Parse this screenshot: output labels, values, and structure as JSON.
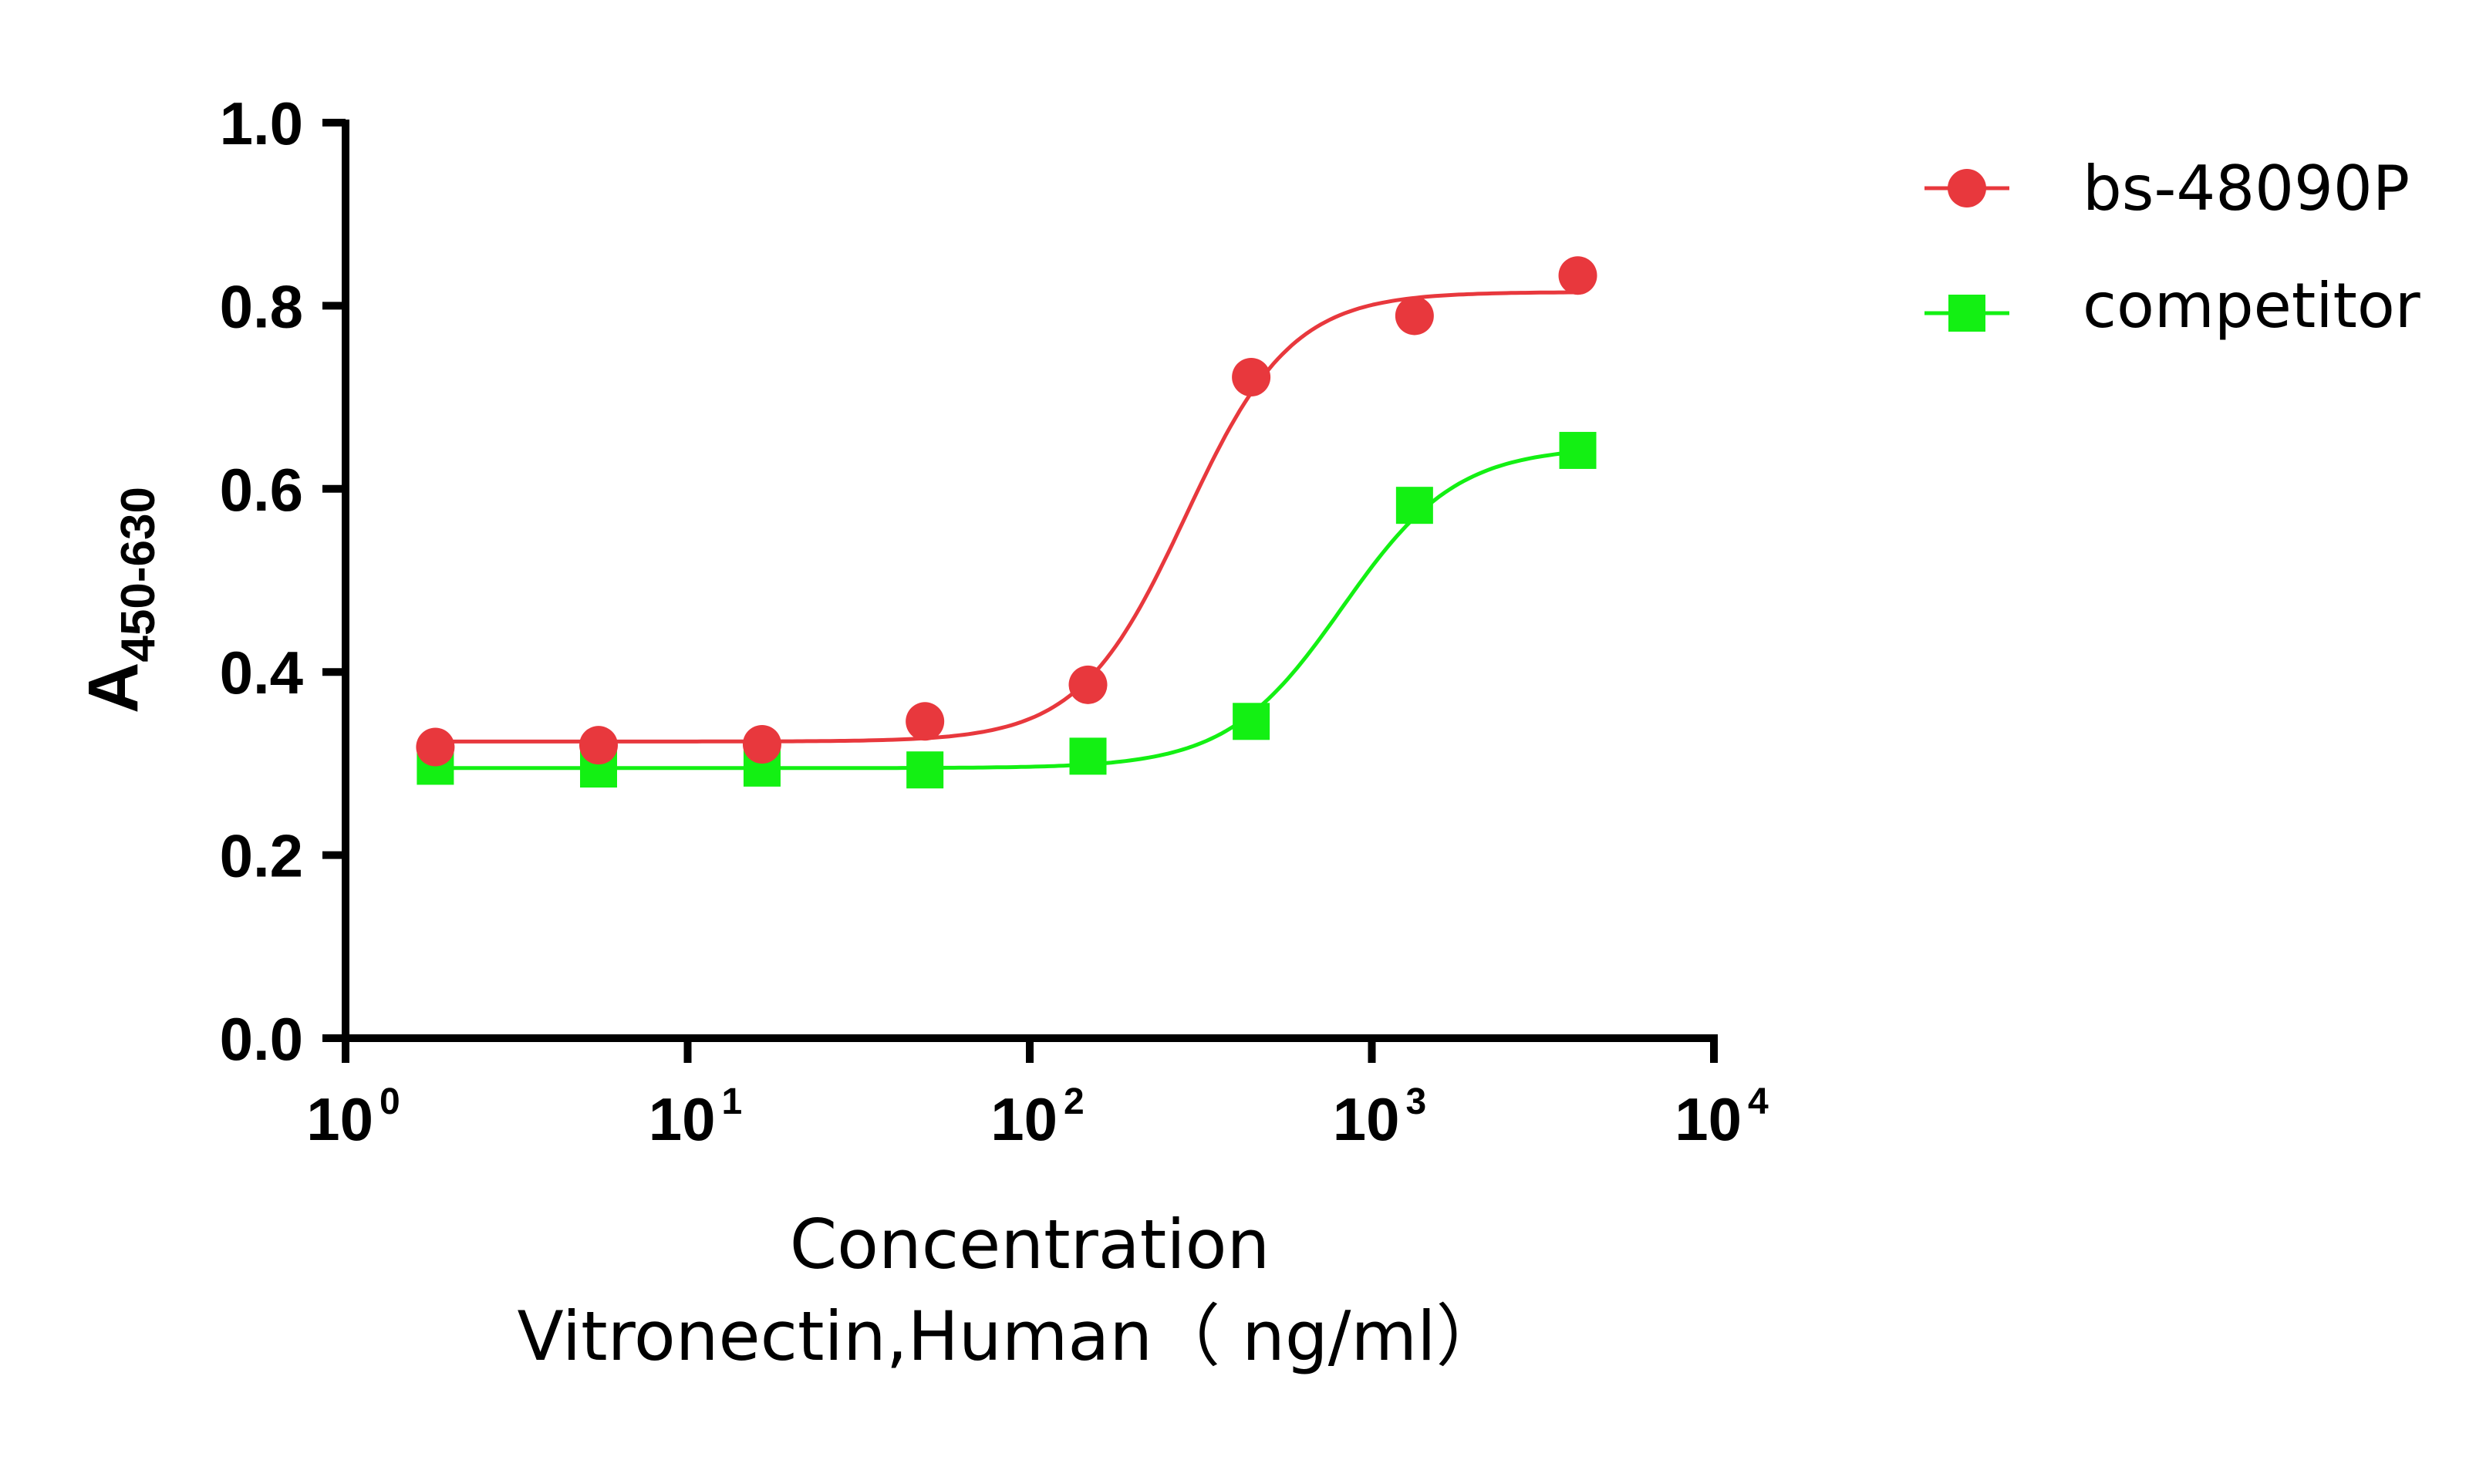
{
  "chart_data": {
    "type": "scatter",
    "title": "",
    "xlabel": "Concentration",
    "xlabel_line2": "Vitronectin,Human（ ng/ml）",
    "ylabel_main": "A",
    "ylabel_sub": "450-630",
    "xscale": "log10",
    "xlim": [
      1,
      10000
    ],
    "ylim": [
      0.0,
      1.0
    ],
    "x_ticks": [
      {
        "base": "10",
        "exp": "0"
      },
      {
        "base": "10",
        "exp": "1"
      },
      {
        "base": "10",
        "exp": "2"
      },
      {
        "base": "10",
        "exp": "3"
      },
      {
        "base": "10",
        "exp": "4"
      }
    ],
    "y_ticks": [
      "0.0",
      "0.2",
      "0.4",
      "0.6",
      "0.8",
      "1.0"
    ],
    "legend_position": "top-right",
    "series": [
      {
        "name": "bs-48090P",
        "color": "#e8383d",
        "marker": "circle",
        "x": [
          1.83,
          5.49,
          16.5,
          49.4,
          148,
          444,
          1333,
          4000
        ],
        "y": [
          0.318,
          0.32,
          0.321,
          0.346,
          0.386,
          0.722,
          0.789,
          0.833
        ],
        "fit": {
          "bottom": 0.324,
          "top": 0.815,
          "ec50": 285,
          "hill": 2.8
        }
      },
      {
        "name": "competitor",
        "color": "#13f013",
        "marker": "square",
        "x": [
          1.83,
          5.49,
          16.5,
          49.4,
          148,
          444,
          1333,
          4000
        ],
        "y": [
          0.297,
          0.294,
          0.295,
          0.293,
          0.308,
          0.346,
          0.582,
          0.642
        ],
        "fit": {
          "bottom": 0.295,
          "top": 0.646,
          "ec50": 820,
          "hill": 2.6
        }
      }
    ]
  }
}
